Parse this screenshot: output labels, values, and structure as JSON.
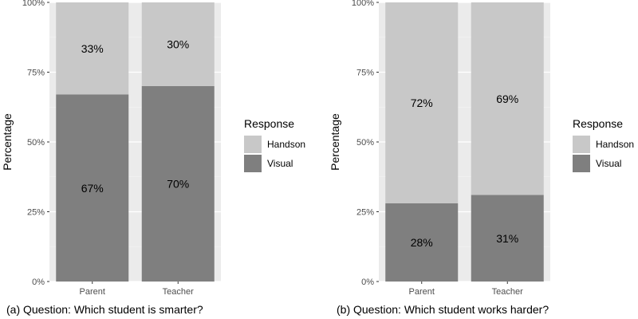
{
  "chart_data": [
    {
      "type": "bar",
      "stacked": true,
      "caption": "(a) Question: Which student is smarter?",
      "ylabel": "Percentage",
      "xlabel": "",
      "ylim": [
        0,
        100
      ],
      "yticks": [
        "0%",
        "25%",
        "50%",
        "75%",
        "100%"
      ],
      "categories": [
        "Parent",
        "Teacher"
      ],
      "series": [
        {
          "name": "Visual",
          "values": [
            67,
            70
          ],
          "labels": [
            "67%",
            "70%"
          ],
          "color": "#7f7f7f"
        },
        {
          "name": "Handson",
          "values": [
            33,
            30
          ],
          "labels": [
            "33%",
            "30%"
          ],
          "color": "#c8c8c8"
        }
      ],
      "legend": {
        "title": "Response",
        "position": "right",
        "items": [
          "Handson",
          "Visual"
        ]
      },
      "grid": true,
      "panel_background": "#ebebeb"
    },
    {
      "type": "bar",
      "stacked": true,
      "caption": "(b) Question: Which student works harder?",
      "ylabel": "Percentage",
      "xlabel": "",
      "ylim": [
        0,
        100
      ],
      "yticks": [
        "0%",
        "25%",
        "50%",
        "75%",
        "100%"
      ],
      "categories": [
        "Parent",
        "Teacher"
      ],
      "series": [
        {
          "name": "Visual",
          "values": [
            28,
            31
          ],
          "labels": [
            "28%",
            "31%"
          ],
          "color": "#7f7f7f"
        },
        {
          "name": "Handson",
          "values": [
            72,
            69
          ],
          "labels": [
            "72%",
            "69%"
          ],
          "color": "#c8c8c8"
        }
      ],
      "legend": {
        "title": "Response",
        "position": "right",
        "items": [
          "Handson",
          "Visual"
        ]
      },
      "grid": true,
      "panel_background": "#ebebeb"
    }
  ]
}
